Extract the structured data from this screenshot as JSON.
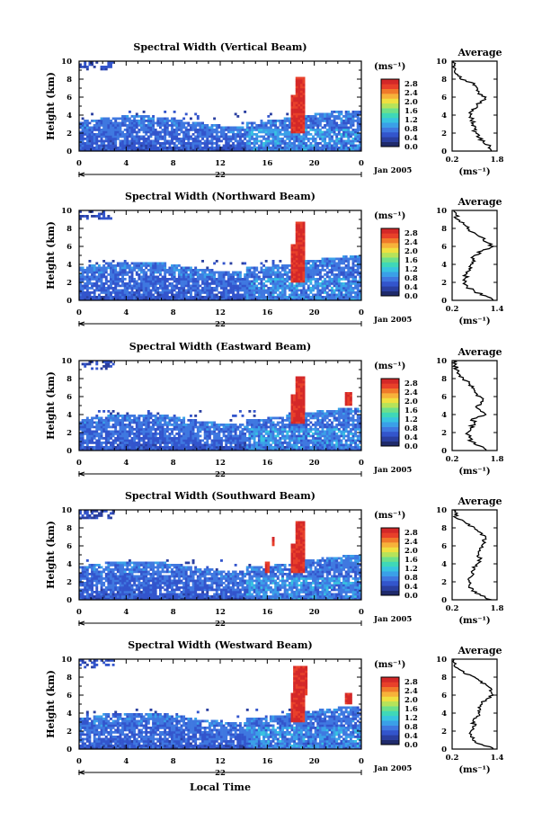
{
  "figure": {
    "date_label": "Jan 2005",
    "day_label": "22",
    "xlabel": "Local Time",
    "ylabel": "Height (km)",
    "unit_label": "(ms⁻¹)",
    "avg_title": "Average"
  },
  "colors": {
    "scale": [
      "#1f2a6b",
      "#2a3fa0",
      "#3355cc",
      "#3f78e0",
      "#3aa0e8",
      "#38c4e0",
      "#3fd8b8",
      "#6ee08a",
      "#b6e35a",
      "#f0e040",
      "#f7b23a",
      "#f07a2a",
      "#e8402a",
      "#d42828"
    ]
  },
  "chart_data": [
    {
      "type": "heatmap",
      "title": "Spectral Width (Vertical Beam)",
      "x_ticks": [
        "0",
        "4",
        "8",
        "12",
        "16",
        "20",
        "0"
      ],
      "y_ticks": [
        "0",
        "2",
        "4",
        "6",
        "8",
        "10"
      ],
      "xlim": [
        0,
        24
      ],
      "ylim": [
        0,
        10
      ],
      "colorbar_ticks": [
        "0.0",
        "0.4",
        "0.8",
        "1.2",
        "1.6",
        "2.0",
        "2.4",
        "2.8"
      ],
      "colorbar_range": [
        0,
        3.0
      ],
      "avg_ticks": [
        "0.2",
        "1.8"
      ],
      "avg_xlim": [
        0.2,
        1.8
      ],
      "avg_profile": [
        [
          0,
          1.6
        ],
        [
          0.5,
          1.55
        ],
        [
          1,
          1.3
        ],
        [
          1.5,
          1.15
        ],
        [
          2,
          1.05
        ],
        [
          2.5,
          1.0
        ],
        [
          3,
          0.95
        ],
        [
          3.5,
          0.9
        ],
        [
          4,
          0.85
        ],
        [
          4.5,
          0.95
        ],
        [
          5,
          1.1
        ],
        [
          5.5,
          1.2
        ],
        [
          6,
          1.4
        ],
        [
          6.5,
          1.15
        ],
        [
          7,
          1.1
        ],
        [
          7.5,
          1.0
        ],
        [
          8,
          0.5
        ],
        [
          8.5,
          0.4
        ],
        [
          9,
          0.3
        ],
        [
          9.5,
          0.3
        ],
        [
          10,
          0.25
        ]
      ],
      "echo": {
        "low_top": 3.2,
        "patches": [
          [
            18,
            2,
            19,
            6
          ],
          [
            18.3,
            6,
            19,
            8
          ]
        ]
      }
    },
    {
      "type": "heatmap",
      "title": "Spectral Width (Northward Beam)",
      "x_ticks": [
        "0",
        "4",
        "8",
        "12",
        "16",
        "20",
        "0"
      ],
      "y_ticks": [
        "0",
        "2",
        "4",
        "6",
        "8",
        "10"
      ],
      "xlim": [
        0,
        24
      ],
      "ylim": [
        0,
        10
      ],
      "colorbar_ticks": [
        "0.0",
        "0.4",
        "0.8",
        "1.2",
        "1.6",
        "2.0",
        "2.4",
        "2.8"
      ],
      "colorbar_range": [
        0,
        3.0
      ],
      "avg_ticks": [
        "0.2",
        "1.4"
      ],
      "avg_xlim": [
        0.2,
        1.4
      ],
      "avg_profile": [
        [
          0,
          1.3
        ],
        [
          0.5,
          1.1
        ],
        [
          1,
          0.8
        ],
        [
          1.5,
          0.6
        ],
        [
          2,
          0.55
        ],
        [
          2.5,
          0.55
        ],
        [
          3,
          0.6
        ],
        [
          3.5,
          0.65
        ],
        [
          4,
          0.7
        ],
        [
          4.5,
          0.75
        ],
        [
          5,
          0.8
        ],
        [
          5.5,
          1.0
        ],
        [
          6,
          1.3
        ],
        [
          6.5,
          1.1
        ],
        [
          7,
          1.0
        ],
        [
          7.5,
          0.8
        ],
        [
          8,
          0.6
        ],
        [
          8.5,
          0.5
        ],
        [
          9,
          0.35
        ],
        [
          9.5,
          0.3
        ],
        [
          10,
          0.25
        ]
      ],
      "echo": {
        "low_top": 3.6,
        "patches": [
          [
            18,
            2,
            19,
            6
          ],
          [
            18.3,
            6,
            19.2,
            8.5
          ]
        ]
      }
    },
    {
      "type": "heatmap",
      "title": "Spectral Width (Eastward Beam)",
      "x_ticks": [
        "0",
        "4",
        "8",
        "12",
        "16",
        "20",
        "0"
      ],
      "y_ticks": [
        "0",
        "2",
        "4",
        "6",
        "8",
        "10"
      ],
      "xlim": [
        0,
        24
      ],
      "ylim": [
        0,
        10
      ],
      "colorbar_ticks": [
        "0.0",
        "0.4",
        "0.8",
        "1.2",
        "1.6",
        "2.0",
        "2.4",
        "2.8"
      ],
      "colorbar_range": [
        0,
        3.0
      ],
      "avg_ticks": [
        "0.2",
        "1.8"
      ],
      "avg_xlim": [
        0.2,
        1.8
      ],
      "avg_profile": [
        [
          0,
          1.4
        ],
        [
          0.5,
          1.2
        ],
        [
          1,
          0.9
        ],
        [
          1.5,
          0.8
        ],
        [
          2,
          0.75
        ],
        [
          2.5,
          0.85
        ],
        [
          3,
          1.0
        ],
        [
          3.5,
          0.9
        ],
        [
          4,
          1.4
        ],
        [
          4.5,
          1.2
        ],
        [
          5,
          1.1
        ],
        [
          5.5,
          1.3
        ],
        [
          6,
          1.2
        ],
        [
          6.5,
          1.0
        ],
        [
          7,
          0.9
        ],
        [
          7.5,
          0.8
        ],
        [
          8,
          0.6
        ],
        [
          8.5,
          0.45
        ],
        [
          9,
          0.35
        ],
        [
          9.5,
          0.3
        ],
        [
          10,
          0.25
        ]
      ],
      "echo": {
        "low_top": 3.4,
        "patches": [
          [
            18,
            3,
            19,
            6
          ],
          [
            18.3,
            6,
            19,
            8
          ],
          [
            22.6,
            5,
            23.2,
            6.4
          ]
        ]
      }
    },
    {
      "type": "heatmap",
      "title": "Spectral Width (Southward Beam)",
      "x_ticks": [
        "0",
        "4",
        "8",
        "12",
        "16",
        "20",
        "0"
      ],
      "y_ticks": [
        "0",
        "2",
        "4",
        "6",
        "8",
        "10"
      ],
      "xlim": [
        0,
        24
      ],
      "ylim": [
        0,
        10
      ],
      "colorbar_ticks": [
        "0.0",
        "0.4",
        "0.8",
        "1.2",
        "1.6",
        "2.0",
        "2.4",
        "2.8"
      ],
      "colorbar_range": [
        0,
        3.0
      ],
      "avg_ticks": [
        "0.2",
        "1.8"
      ],
      "avg_xlim": [
        0.2,
        1.8
      ],
      "avg_profile": [
        [
          0,
          1.6
        ],
        [
          0.5,
          1.2
        ],
        [
          1,
          0.9
        ],
        [
          1.5,
          0.8
        ],
        [
          2,
          0.8
        ],
        [
          2.5,
          0.85
        ],
        [
          3,
          0.9
        ],
        [
          3.5,
          1.0
        ],
        [
          4,
          1.1
        ],
        [
          4.5,
          1.2
        ],
        [
          5,
          1.15
        ],
        [
          5.5,
          1.2
        ],
        [
          6,
          1.25
        ],
        [
          6.5,
          1.3
        ],
        [
          7,
          1.4
        ],
        [
          7.5,
          1.2
        ],
        [
          8,
          1.0
        ],
        [
          8.5,
          0.7
        ],
        [
          9,
          0.4
        ],
        [
          9.5,
          0.3
        ],
        [
          10,
          0.25
        ]
      ],
      "echo": {
        "low_top": 3.6,
        "patches": [
          [
            15.7,
            3,
            16.1,
            4
          ],
          [
            18,
            3,
            19,
            6
          ],
          [
            18.3,
            6,
            19,
            8.5
          ],
          [
            16.3,
            6,
            16.5,
            6.8
          ]
        ]
      }
    },
    {
      "type": "heatmap",
      "title": "Spectral Width (Westward Beam)",
      "x_ticks": [
        "0",
        "4",
        "8",
        "12",
        "16",
        "20",
        "0"
      ],
      "y_ticks": [
        "0",
        "2",
        "4",
        "6",
        "8",
        "10"
      ],
      "xlim": [
        0,
        24
      ],
      "ylim": [
        0,
        10
      ],
      "colorbar_ticks": [
        "0.0",
        "0.4",
        "0.8",
        "1.2",
        "1.6",
        "2.0",
        "2.4",
        "2.8"
      ],
      "colorbar_range": [
        0,
        3.0
      ],
      "avg_ticks": [
        "0.2",
        "1.4"
      ],
      "avg_xlim": [
        0.2,
        1.4
      ],
      "avg_profile": [
        [
          0,
          1.3
        ],
        [
          0.5,
          1.0
        ],
        [
          1,
          0.75
        ],
        [
          1.5,
          0.7
        ],
        [
          2,
          0.7
        ],
        [
          2.5,
          0.75
        ],
        [
          3,
          0.8
        ],
        [
          3.5,
          0.85
        ],
        [
          4,
          0.9
        ],
        [
          4.5,
          0.95
        ],
        [
          5,
          1.0
        ],
        [
          5.5,
          1.1
        ],
        [
          6,
          1.3
        ],
        [
          6.5,
          1.2
        ],
        [
          7,
          1.15
        ],
        [
          7.5,
          1.0
        ],
        [
          8,
          0.8
        ],
        [
          8.5,
          0.5
        ],
        [
          9,
          0.35
        ],
        [
          9.5,
          0.3
        ],
        [
          10,
          0.25
        ]
      ],
      "echo": {
        "low_top": 3.4,
        "patches": [
          [
            18,
            3,
            19,
            6
          ],
          [
            18.2,
            6,
            19.4,
            9
          ],
          [
            22.5,
            5,
            23,
            6
          ]
        ]
      }
    }
  ]
}
